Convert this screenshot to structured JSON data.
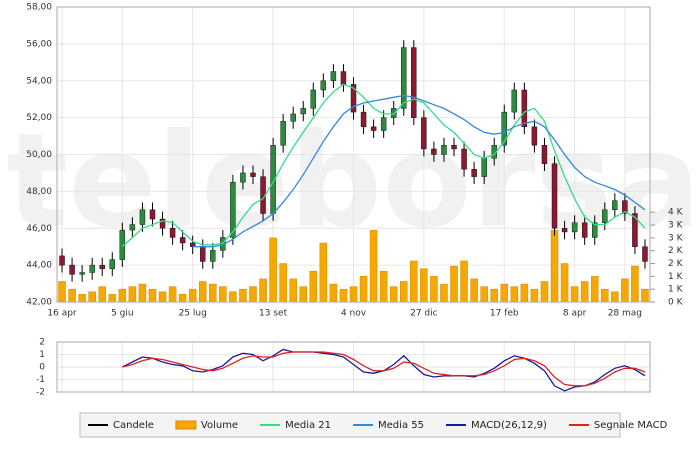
{
  "chart_data": [
    {
      "type": "candlestick",
      "watermark": "teleborsa",
      "categories": [
        "16 apr",
        null,
        null,
        null,
        null,
        null,
        "5 giu",
        null,
        null,
        null,
        null,
        null,
        null,
        "25 lug",
        null,
        null,
        null,
        null,
        null,
        null,
        null,
        "13 set",
        null,
        null,
        null,
        null,
        null,
        null,
        null,
        "4 nov",
        null,
        null,
        null,
        null,
        null,
        null,
        "27 dic",
        null,
        null,
        null,
        null,
        null,
        null,
        null,
        "17 feb",
        null,
        null,
        null,
        null,
        null,
        null,
        "8 apr",
        null,
        null,
        null,
        null,
        "28 mag",
        null,
        null
      ],
      "ylim": [
        42,
        58
      ],
      "yticks": [
        {
          "value": 42,
          "label": "42,00"
        },
        {
          "value": 44,
          "label": "44,00"
        },
        {
          "value": 46,
          "label": "46,00"
        },
        {
          "value": 48,
          "label": "48,00"
        },
        {
          "value": 50,
          "label": "50,00"
        },
        {
          "value": 52,
          "label": "52,00"
        },
        {
          "value": 54,
          "label": "54,00"
        },
        {
          "value": 56,
          "label": "56,00"
        },
        {
          "value": 58,
          "label": "58,00"
        }
      ],
      "y2lim": [
        0,
        11.5
      ],
      "y2ticks": [
        {
          "value": 0,
          "label": "0 K"
        },
        {
          "value": 0.5,
          "label": "1 K"
        },
        {
          "value": 1,
          "label": "1 K"
        },
        {
          "value": 1.5,
          "label": "2 K"
        },
        {
          "value": 2,
          "label": "2 K"
        },
        {
          "value": 2.5,
          "label": "3 K"
        },
        {
          "value": 3,
          "label": "3 K"
        },
        {
          "value": 3.5,
          "label": "4 K"
        }
      ],
      "grid": true,
      "legend": "bottom",
      "candles": {
        "name": "Candele",
        "color": "#000000",
        "up_color": "#2e8b3e",
        "down_color": "#8b1a30",
        "open": [
          44.5,
          44.0,
          43.5,
          43.6,
          44.0,
          43.8,
          44.3,
          45.9,
          46.2,
          47.0,
          46.5,
          46.0,
          45.5,
          45.2,
          45.0,
          44.2,
          44.8,
          45.5,
          48.5,
          49.0,
          48.8,
          46.8,
          50.5,
          51.8,
          52.2,
          52.5,
          53.5,
          54.0,
          54.5,
          53.8,
          52.3,
          51.5,
          51.3,
          52.0,
          52.5,
          55.8,
          52.0,
          50.3,
          50.0,
          50.5,
          50.3,
          49.2,
          48.8,
          49.8,
          50.5,
          52.3,
          53.5,
          51.5,
          50.5,
          49.5,
          46.0,
          45.8,
          46.3,
          45.5,
          46.3,
          47.0,
          47.5,
          46.8,
          45.0
        ],
        "high": [
          44.9,
          44.4,
          44.0,
          44.4,
          44.4,
          44.7,
          46.3,
          46.6,
          47.4,
          47.4,
          46.9,
          46.4,
          45.9,
          45.6,
          45.4,
          45.2,
          45.9,
          48.9,
          49.4,
          49.4,
          49.2,
          50.9,
          52.2,
          52.6,
          52.9,
          53.9,
          54.4,
          54.9,
          54.9,
          54.2,
          52.7,
          51.9,
          52.4,
          52.9,
          56.2,
          56.2,
          52.4,
          50.7,
          50.9,
          50.9,
          50.7,
          49.6,
          50.2,
          50.9,
          52.7,
          53.9,
          53.9,
          51.9,
          50.9,
          49.9,
          46.4,
          46.7,
          46.7,
          46.7,
          47.4,
          47.9,
          47.9,
          47.2,
          45.4
        ],
        "low": [
          43.6,
          43.1,
          43.1,
          43.2,
          43.4,
          43.4,
          43.9,
          45.5,
          45.8,
          46.1,
          45.6,
          45.1,
          44.8,
          44.6,
          43.8,
          43.8,
          44.4,
          45.1,
          48.1,
          48.4,
          46.4,
          46.4,
          50.1,
          51.4,
          51.8,
          52.1,
          53.1,
          53.6,
          53.4,
          51.9,
          51.1,
          50.9,
          50.9,
          51.6,
          52.1,
          51.6,
          49.9,
          49.6,
          49.6,
          49.9,
          48.8,
          48.4,
          48.4,
          49.4,
          50.1,
          51.9,
          51.1,
          50.1,
          49.1,
          45.6,
          45.4,
          45.4,
          45.1,
          45.1,
          45.9,
          46.6,
          46.4,
          44.6,
          43.8
        ],
        "close": [
          44.0,
          43.5,
          43.6,
          44.0,
          43.8,
          44.3,
          45.9,
          46.2,
          47.0,
          46.5,
          46.0,
          45.5,
          45.2,
          45.0,
          44.2,
          44.8,
          45.5,
          48.5,
          49.0,
          48.8,
          46.8,
          50.5,
          51.8,
          52.2,
          52.5,
          53.5,
          54.0,
          54.5,
          53.8,
          52.3,
          51.5,
          51.3,
          52.0,
          52.5,
          55.8,
          52.0,
          50.3,
          50.0,
          50.5,
          50.3,
          49.2,
          48.8,
          49.8,
          50.5,
          52.3,
          53.5,
          51.5,
          50.5,
          49.5,
          46.0,
          45.8,
          46.3,
          45.5,
          46.3,
          47.0,
          47.5,
          46.8,
          45.0,
          44.2
        ]
      },
      "series": [
        {
          "name": "Volume",
          "type": "bar",
          "axis": "y2",
          "color": "#f5a800",
          "values": [
            0.8,
            0.5,
            0.3,
            0.4,
            0.6,
            0.3,
            0.5,
            0.6,
            0.7,
            0.5,
            0.4,
            0.6,
            0.3,
            0.5,
            0.8,
            0.7,
            0.6,
            0.4,
            0.5,
            0.6,
            0.9,
            2.5,
            1.5,
            0.9,
            0.6,
            1.2,
            2.3,
            0.7,
            0.5,
            0.6,
            1.0,
            2.8,
            1.2,
            0.6,
            0.8,
            1.6,
            1.3,
            1.0,
            0.7,
            1.4,
            1.6,
            0.9,
            0.6,
            0.5,
            0.7,
            0.6,
            0.7,
            0.5,
            0.8,
            2.8,
            1.5,
            0.6,
            0.8,
            1.0,
            0.5,
            0.4,
            0.9,
            1.4,
            0.5
          ]
        },
        {
          "name": "Media 21",
          "type": "line",
          "color": "#33dd88",
          "values": [
            null,
            null,
            null,
            null,
            null,
            null,
            45.0,
            45.5,
            46.0,
            46.2,
            46.4,
            46.3,
            45.8,
            45.3,
            45.1,
            45.1,
            45.2,
            45.8,
            46.6,
            47.3,
            47.6,
            48.5,
            49.5,
            50.4,
            51.2,
            52.0,
            52.8,
            53.4,
            53.8,
            53.6,
            53.1,
            52.5,
            52.2,
            52.2,
            52.8,
            53.0,
            52.8,
            52.2,
            51.6,
            51.2,
            50.6,
            50.0,
            49.8,
            50.0,
            50.7,
            51.6,
            52.3,
            52.5,
            51.8,
            50.2,
            48.8,
            47.6,
            46.6,
            46.2,
            46.2,
            46.6,
            46.9,
            46.6,
            46.0
          ]
        },
        {
          "name": "Media 55",
          "type": "line",
          "color": "#3388dd",
          "values": [
            null,
            null,
            null,
            null,
            null,
            null,
            null,
            null,
            null,
            null,
            null,
            null,
            null,
            45.0,
            45.0,
            45.0,
            45.1,
            45.4,
            45.8,
            46.1,
            46.4,
            46.8,
            47.4,
            48.1,
            48.9,
            49.8,
            50.7,
            51.5,
            52.2,
            52.6,
            52.8,
            52.9,
            53.0,
            53.1,
            53.2,
            53.1,
            52.9,
            52.7,
            52.5,
            52.2,
            51.9,
            51.5,
            51.2,
            51.1,
            51.2,
            51.5,
            51.7,
            51.8,
            51.5,
            50.8,
            50.0,
            49.3,
            48.8,
            48.5,
            48.3,
            48.1,
            47.8,
            47.4,
            47.0
          ]
        }
      ]
    },
    {
      "type": "line",
      "ylim": [
        -2,
        2
      ],
      "yticks": [
        -2,
        -1,
        0,
        1,
        2
      ],
      "grid": true,
      "series": [
        {
          "name": "MACD(26,12,9)",
          "color": "#1a1a99",
          "values": [
            null,
            null,
            null,
            null,
            null,
            null,
            0.0,
            0.4,
            0.8,
            0.7,
            0.4,
            0.2,
            0.1,
            -0.3,
            -0.4,
            -0.2,
            0.1,
            0.8,
            1.1,
            1.0,
            0.5,
            0.9,
            1.4,
            1.2,
            1.2,
            1.2,
            1.1,
            1.0,
            0.8,
            0.2,
            -0.4,
            -0.5,
            -0.3,
            0.2,
            0.9,
            0.1,
            -0.6,
            -0.8,
            -0.7,
            -0.7,
            -0.7,
            -0.8,
            -0.5,
            -0.1,
            0.5,
            0.9,
            0.7,
            0.3,
            -0.3,
            -1.5,
            -1.9,
            -1.6,
            -1.5,
            -1.2,
            -0.6,
            -0.1,
            0.1,
            -0.2,
            -0.7
          ]
        },
        {
          "name": "Segnale MACD",
          "color": "#dd2222",
          "values": [
            null,
            null,
            null,
            null,
            null,
            null,
            0.0,
            0.2,
            0.5,
            0.7,
            0.6,
            0.4,
            0.2,
            0.0,
            -0.2,
            -0.3,
            -0.1,
            0.3,
            0.7,
            0.9,
            0.8,
            0.8,
            1.1,
            1.2,
            1.2,
            1.2,
            1.2,
            1.1,
            1.0,
            0.6,
            0.1,
            -0.3,
            -0.3,
            -0.1,
            0.4,
            0.3,
            -0.1,
            -0.5,
            -0.6,
            -0.7,
            -0.7,
            -0.7,
            -0.6,
            -0.3,
            0.1,
            0.6,
            0.7,
            0.5,
            0.1,
            -0.8,
            -1.4,
            -1.5,
            -1.5,
            -1.3,
            -0.9,
            -0.4,
            -0.1,
            -0.1,
            -0.4
          ]
        }
      ]
    }
  ]
}
